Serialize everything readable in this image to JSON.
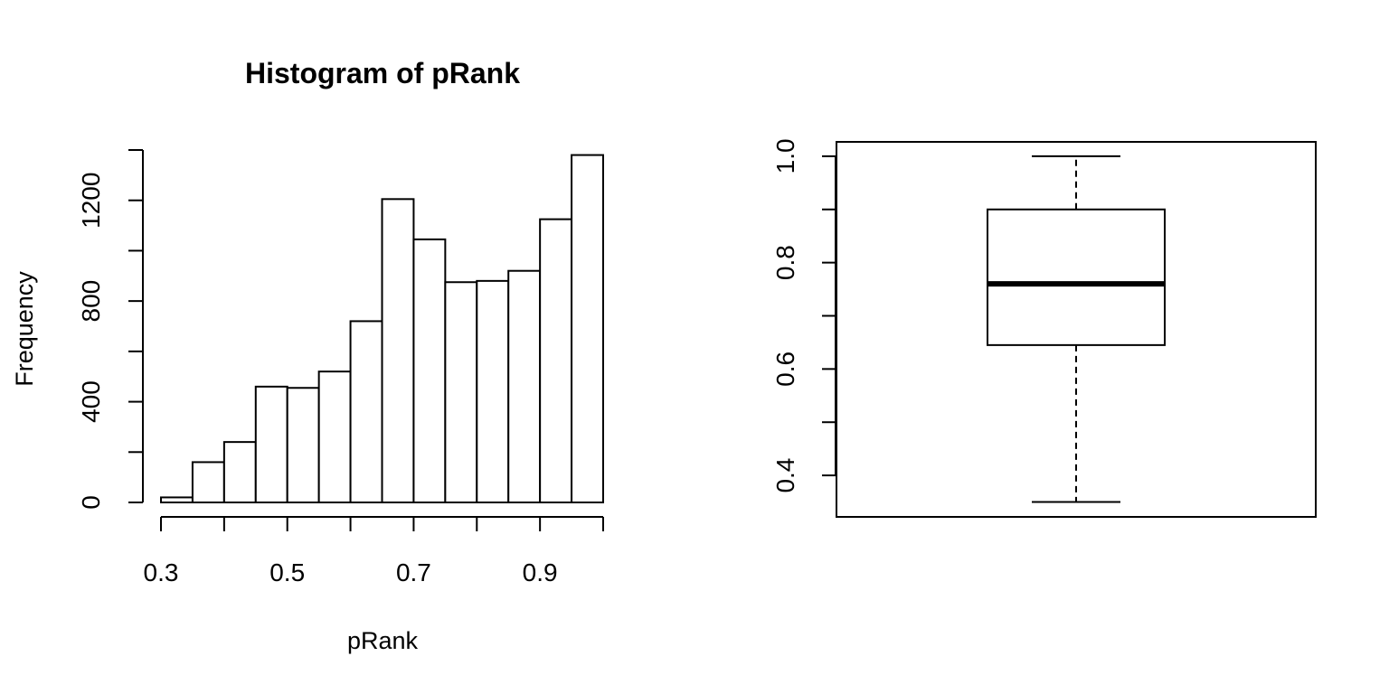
{
  "chart_data": [
    {
      "type": "bar",
      "subtype": "histogram",
      "title": "Histogram of pRank",
      "xlabel": "pRank",
      "ylabel": "Frequency",
      "bin_edges": [
        0.3,
        0.35,
        0.4,
        0.45,
        0.5,
        0.55,
        0.6,
        0.65,
        0.7,
        0.75,
        0.8,
        0.85,
        0.9,
        0.95,
        1.0
      ],
      "values": [
        20,
        160,
        240,
        460,
        455,
        520,
        720,
        1205,
        1045,
        875,
        880,
        920,
        1125,
        1380
      ],
      "xlim": [
        0.3,
        1.0
      ],
      "ylim": [
        0,
        1400
      ],
      "x_ticks": [
        0.3,
        0.4,
        0.5,
        0.6,
        0.7,
        0.8,
        0.9,
        1.0
      ],
      "x_tick_labels": [
        "0.3",
        "",
        "0.5",
        "",
        "0.7",
        "",
        "0.9",
        ""
      ],
      "y_ticks": [
        0,
        200,
        400,
        600,
        800,
        1000,
        1200,
        1400
      ],
      "y_tick_labels": [
        "0",
        "",
        "400",
        "",
        "800",
        "",
        "1200",
        ""
      ],
      "grid": false,
      "fill_color": "#ffffff",
      "stroke_color": "#000000"
    },
    {
      "type": "box",
      "title": "",
      "xlabel": "",
      "ylabel": "",
      "box": {
        "whisker_low": 0.35,
        "q1": 0.645,
        "median": 0.76,
        "q3": 0.9,
        "whisker_high": 1.0
      },
      "ylim": [
        0.322,
        1.027
      ],
      "y_ticks": [
        0.4,
        0.5,
        0.6,
        0.7,
        0.8,
        0.9,
        1.0
      ],
      "y_tick_labels": [
        "0.4",
        "",
        "0.6",
        "",
        "0.8",
        "",
        "1.0"
      ],
      "grid": false,
      "stroke_color": "#000000"
    }
  ]
}
